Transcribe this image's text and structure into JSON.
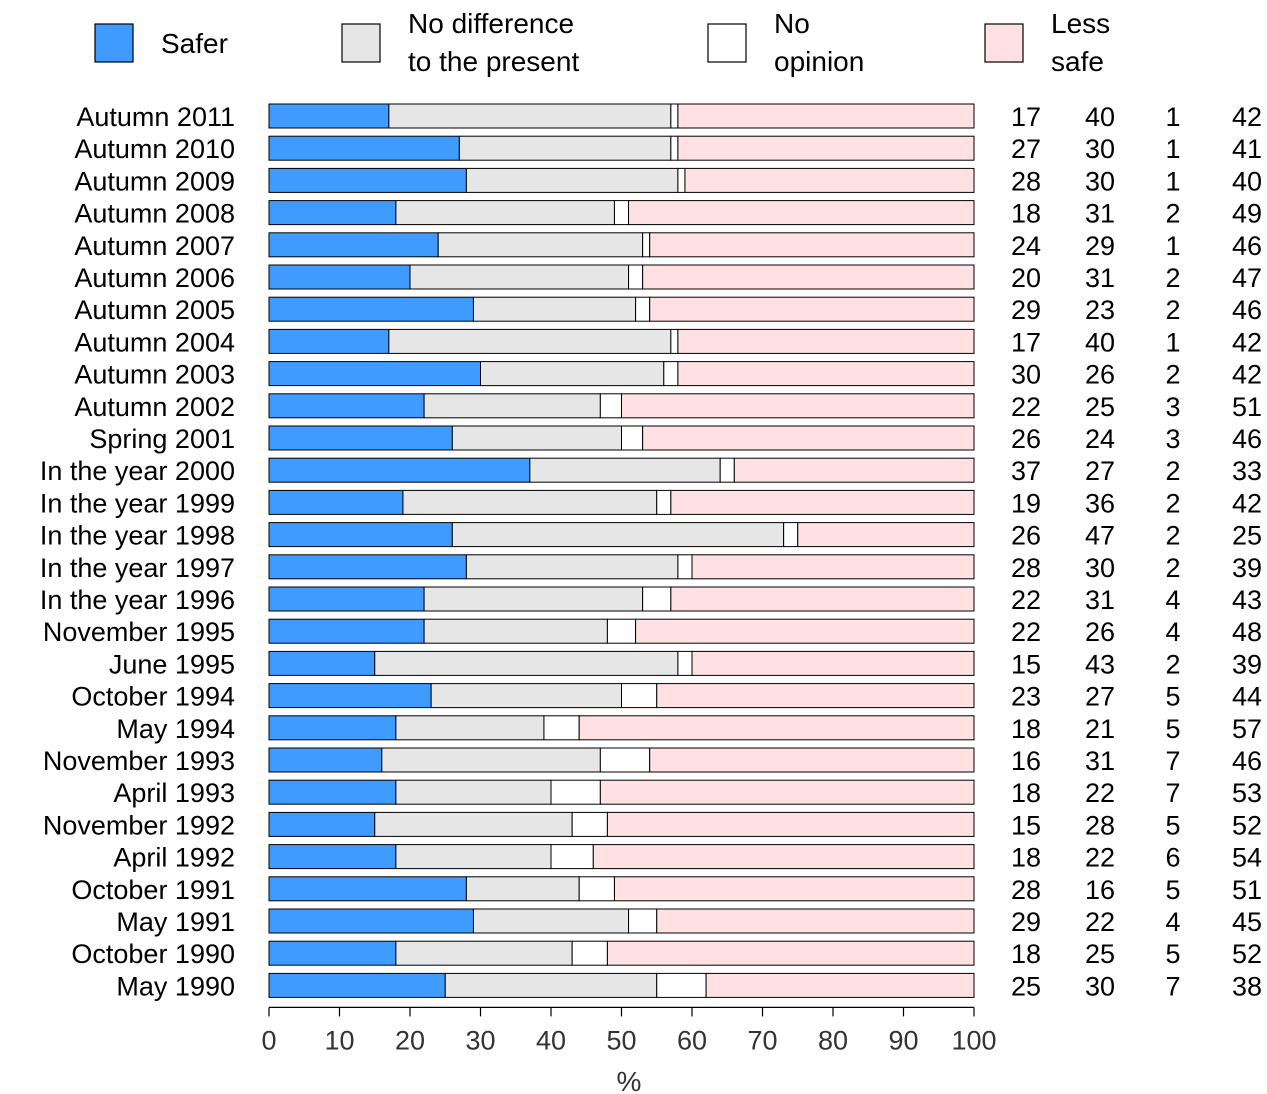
{
  "chart_data": {
    "type": "bar",
    "orientation": "horizontal",
    "stacked": true,
    "xlabel": "%",
    "xlim": [
      0,
      100
    ],
    "xticks": [
      0,
      10,
      20,
      30,
      40,
      50,
      60,
      70,
      80,
      90,
      100
    ],
    "grid": false,
    "legend_position": "top",
    "categories": [
      "Autumn 2011",
      "Autumn 2010",
      "Autumn 2009",
      "Autumn 2008",
      "Autumn 2007",
      "Autumn 2006",
      "Autumn 2005",
      "Autumn 2004",
      "Autumn 2003",
      "Autumn 2002",
      "Spring 2001",
      "In the year 2000",
      "In the year 1999",
      "In the year 1998",
      "In the year 1997",
      "In the year 1996",
      "November 1995",
      "June 1995",
      "October 1994",
      "May 1994",
      "November 1993",
      "April 1993",
      "November 1992",
      "April 1992",
      "October 1991",
      "May 1991",
      "October 1990",
      "May 1990"
    ],
    "series": [
      {
        "name": "Safer",
        "legend_label": [
          "Safer"
        ],
        "color": "#3f9bff",
        "values": [
          17,
          27,
          28,
          18,
          24,
          20,
          29,
          17,
          30,
          22,
          26,
          37,
          19,
          26,
          28,
          22,
          22,
          15,
          23,
          18,
          16,
          18,
          15,
          18,
          28,
          29,
          18,
          25
        ]
      },
      {
        "name": "No difference to the present",
        "legend_label": [
          "No difference",
          "to the present"
        ],
        "color": "#e6e6e6",
        "values": [
          40,
          30,
          30,
          31,
          29,
          31,
          23,
          40,
          26,
          25,
          24,
          27,
          36,
          47,
          30,
          31,
          26,
          43,
          27,
          21,
          31,
          22,
          28,
          22,
          16,
          22,
          25,
          30
        ]
      },
      {
        "name": "No opinion",
        "legend_label": [
          "No",
          "opinion"
        ],
        "color": "#ffffff",
        "values": [
          1,
          1,
          1,
          2,
          1,
          2,
          2,
          1,
          2,
          3,
          3,
          2,
          2,
          2,
          2,
          4,
          4,
          2,
          5,
          5,
          7,
          7,
          5,
          6,
          5,
          4,
          5,
          7
        ]
      },
      {
        "name": "Less safe",
        "legend_label": [
          "Less",
          "safe"
        ],
        "color": "#ffe1e3",
        "values": [
          42,
          41,
          40,
          49,
          46,
          47,
          46,
          42,
          42,
          51,
          46,
          33,
          42,
          25,
          39,
          43,
          48,
          39,
          44,
          57,
          46,
          53,
          52,
          54,
          51,
          45,
          52,
          38
        ]
      }
    ]
  }
}
